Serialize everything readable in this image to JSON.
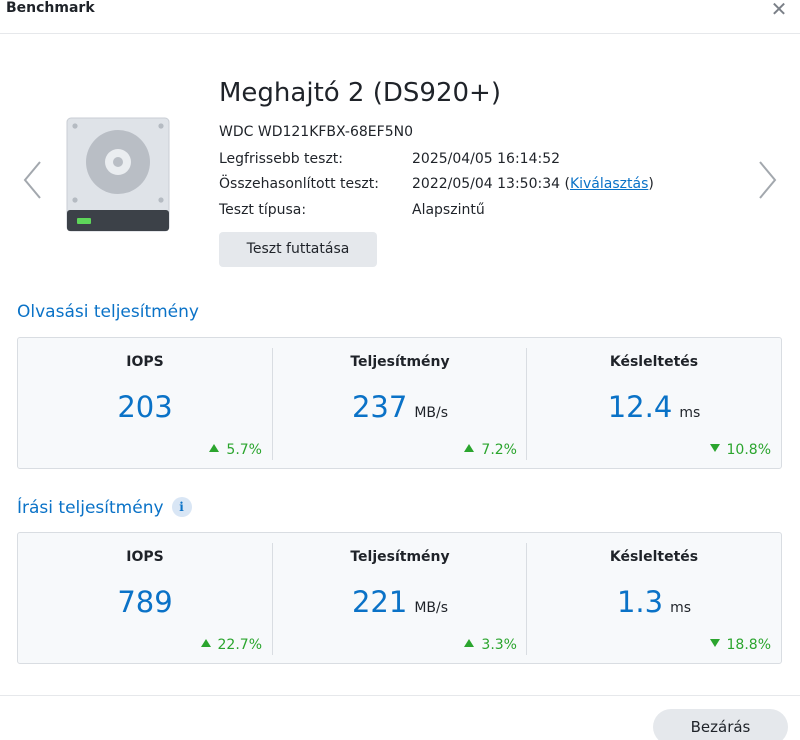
{
  "window": {
    "title": "Benchmark",
    "close_glyph": "✕"
  },
  "drive": {
    "name": "Meghajtó 2 (DS920+)",
    "model": "WDC WD121KFBX-68EF5N0",
    "latest_label": "Legfrissebb teszt:",
    "latest_value": "2025/04/05 16:14:52",
    "compared_label": "Összehasonlított teszt:",
    "compared_value": "2022/05/04 13:50:34",
    "compared_open": " (",
    "compared_link": "Kiválasztás",
    "compared_close": ")",
    "type_label": "Teszt típusa:",
    "type_value": "Alapszintű",
    "run_button": "Teszt futtatása",
    "icon": "hard-drive-icon",
    "led_color": "#5ed65a"
  },
  "read": {
    "title": "Olvasási teljesítmény",
    "metrics": [
      {
        "label": "IOPS",
        "value": "203",
        "unit": "",
        "change": "5.7%",
        "direction": "up"
      },
      {
        "label": "Teljesítmény",
        "value": "237",
        "unit": "MB/s",
        "change": "7.2%",
        "direction": "up"
      },
      {
        "label": "Késleltetés",
        "value": "12.4",
        "unit": "ms",
        "change": "10.8%",
        "direction": "down"
      }
    ]
  },
  "write": {
    "title": "Írási teljesítmény",
    "info_glyph": "i",
    "metrics": [
      {
        "label": "IOPS",
        "value": "789",
        "unit": "",
        "change": "22.7%",
        "direction": "up"
      },
      {
        "label": "Teljesítmény",
        "value": "221",
        "unit": "MB/s",
        "change": "3.3%",
        "direction": "up"
      },
      {
        "label": "Késleltetés",
        "value": "1.3",
        "unit": "ms",
        "change": "18.8%",
        "direction": "down"
      }
    ]
  },
  "footer": {
    "close_button": "Bezárás"
  },
  "colors": {
    "accent": "#0a72c7",
    "positive": "#2ba52e",
    "panel_bg": "#f7f9fb",
    "button_bg": "#e5e8ec"
  }
}
